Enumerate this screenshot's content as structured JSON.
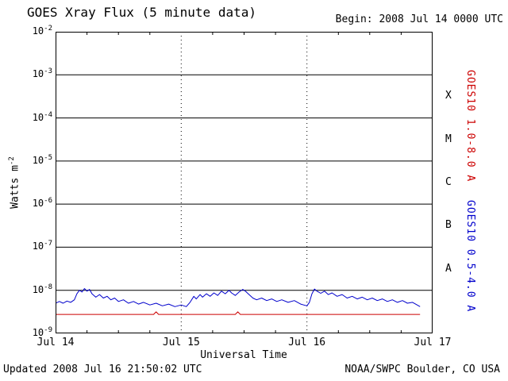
{
  "header": {
    "title": "GOES Xray Flux (5 minute data)",
    "begin_label": "Begin:  2008 Jul 14 0000 UTC"
  },
  "footer": {
    "updated": "Updated 2008 Jul 16 21:50:02 UTC",
    "source": "NOAA/SWPC Boulder, CO USA"
  },
  "chart_data": {
    "type": "line",
    "title": "GOES Xray Flux (5 minute data)",
    "xlabel": "Universal Time",
    "ylabel_base": "Watts m",
    "ylabel_exp": "-2",
    "y_tick_base": "10",
    "x_ticks": [
      "Jul 14",
      "Jul 15",
      "Jul 16",
      "Jul 17"
    ],
    "x_range_days": [
      0,
      3
    ],
    "y_max_exp": -2,
    "y_min_exp": -9,
    "y_exponents": [
      -2,
      -3,
      -4,
      -5,
      -6,
      -7,
      -8,
      -9
    ],
    "flare_classes": [
      "X",
      "M",
      "C",
      "B",
      "A"
    ],
    "grid": {
      "horizontal_solid_at_decades": true,
      "vertical_dotted_at_day_boundaries": true
    },
    "colors": {
      "axis": "#000000",
      "long_band": "#cc0000",
      "short_band": "#0000cc"
    },
    "series": [
      {
        "name": "GOES10 1.0-8.0 A",
        "color": "#cc0000",
        "points_t_log10flux": [
          [
            0.0,
            -8.56
          ],
          [
            0.4,
            -8.56
          ],
          [
            0.6,
            -8.56
          ],
          [
            0.78,
            -8.56
          ],
          [
            0.8,
            -8.5
          ],
          [
            0.82,
            -8.56
          ],
          [
            1.1,
            -8.56
          ],
          [
            1.43,
            -8.56
          ],
          [
            1.45,
            -8.5
          ],
          [
            1.47,
            -8.56
          ],
          [
            1.8,
            -8.56
          ],
          [
            2.1,
            -8.56
          ],
          [
            2.4,
            -8.56
          ],
          [
            2.7,
            -8.56
          ],
          [
            2.9,
            -8.56
          ]
        ]
      },
      {
        "name": "GOES10 0.5-4.0 A",
        "color": "#0000cc",
        "points_t_log10flux": [
          [
            0.0,
            -8.3
          ],
          [
            0.03,
            -8.26
          ],
          [
            0.06,
            -8.3
          ],
          [
            0.09,
            -8.25
          ],
          [
            0.12,
            -8.28
          ],
          [
            0.15,
            -8.22
          ],
          [
            0.17,
            -8.08
          ],
          [
            0.19,
            -8.0
          ],
          [
            0.21,
            -8.04
          ],
          [
            0.23,
            -7.96
          ],
          [
            0.25,
            -8.02
          ],
          [
            0.27,
            -7.98
          ],
          [
            0.29,
            -8.08
          ],
          [
            0.32,
            -8.16
          ],
          [
            0.35,
            -8.1
          ],
          [
            0.38,
            -8.18
          ],
          [
            0.41,
            -8.14
          ],
          [
            0.44,
            -8.22
          ],
          [
            0.47,
            -8.18
          ],
          [
            0.5,
            -8.26
          ],
          [
            0.54,
            -8.22
          ],
          [
            0.58,
            -8.3
          ],
          [
            0.62,
            -8.26
          ],
          [
            0.66,
            -8.32
          ],
          [
            0.7,
            -8.28
          ],
          [
            0.75,
            -8.34
          ],
          [
            0.8,
            -8.3
          ],
          [
            0.85,
            -8.36
          ],
          [
            0.9,
            -8.32
          ],
          [
            0.95,
            -8.38
          ],
          [
            1.0,
            -8.34
          ],
          [
            1.04,
            -8.38
          ],
          [
            1.07,
            -8.28
          ],
          [
            1.1,
            -8.14
          ],
          [
            1.12,
            -8.2
          ],
          [
            1.15,
            -8.1
          ],
          [
            1.17,
            -8.16
          ],
          [
            1.2,
            -8.08
          ],
          [
            1.23,
            -8.14
          ],
          [
            1.26,
            -8.06
          ],
          [
            1.29,
            -8.12
          ],
          [
            1.32,
            -8.02
          ],
          [
            1.35,
            -8.08
          ],
          [
            1.38,
            -8.0
          ],
          [
            1.4,
            -8.06
          ],
          [
            1.43,
            -8.12
          ],
          [
            1.46,
            -8.04
          ],
          [
            1.49,
            -7.98
          ],
          [
            1.51,
            -8.02
          ],
          [
            1.54,
            -8.1
          ],
          [
            1.57,
            -8.18
          ],
          [
            1.6,
            -8.22
          ],
          [
            1.64,
            -8.18
          ],
          [
            1.68,
            -8.24
          ],
          [
            1.72,
            -8.2
          ],
          [
            1.76,
            -8.26
          ],
          [
            1.8,
            -8.22
          ],
          [
            1.85,
            -8.28
          ],
          [
            1.9,
            -8.24
          ],
          [
            1.95,
            -8.32
          ],
          [
            2.0,
            -8.36
          ],
          [
            2.02,
            -8.28
          ],
          [
            2.04,
            -8.08
          ],
          [
            2.06,
            -7.97
          ],
          [
            2.08,
            -8.02
          ],
          [
            2.11,
            -8.07
          ],
          [
            2.14,
            -8.02
          ],
          [
            2.17,
            -8.1
          ],
          [
            2.2,
            -8.06
          ],
          [
            2.24,
            -8.14
          ],
          [
            2.28,
            -8.1
          ],
          [
            2.32,
            -8.18
          ],
          [
            2.36,
            -8.14
          ],
          [
            2.4,
            -8.2
          ],
          [
            2.44,
            -8.16
          ],
          [
            2.48,
            -8.22
          ],
          [
            2.52,
            -8.18
          ],
          [
            2.56,
            -8.24
          ],
          [
            2.6,
            -8.2
          ],
          [
            2.64,
            -8.26
          ],
          [
            2.68,
            -8.22
          ],
          [
            2.72,
            -8.28
          ],
          [
            2.76,
            -8.24
          ],
          [
            2.8,
            -8.3
          ],
          [
            2.84,
            -8.28
          ],
          [
            2.87,
            -8.33
          ],
          [
            2.9,
            -8.38
          ]
        ]
      }
    ]
  }
}
